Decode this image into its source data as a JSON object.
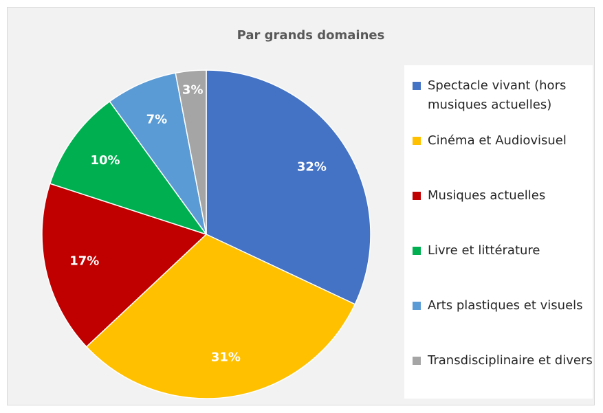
{
  "chart_data": {
    "type": "pie",
    "title": "Par grands domaines",
    "categories": [
      "Spectacle vivant (hors musiques actuelles)",
      "Cinéma et Audiovisuel",
      "Musiques actuelles",
      "Livre et littérature",
      "Arts plastiques et visuels",
      "Transdisciplinaire et divers"
    ],
    "values": [
      32,
      31,
      17,
      10,
      7,
      3
    ],
    "value_labels": [
      "32%",
      "31%",
      "17%",
      "10%",
      "7%",
      "3%"
    ],
    "colors": [
      "#4472c4",
      "#ffc000",
      "#c00000",
      "#00b050",
      "#5b9bd5",
      "#a5a5a5"
    ],
    "legend": "right"
  }
}
